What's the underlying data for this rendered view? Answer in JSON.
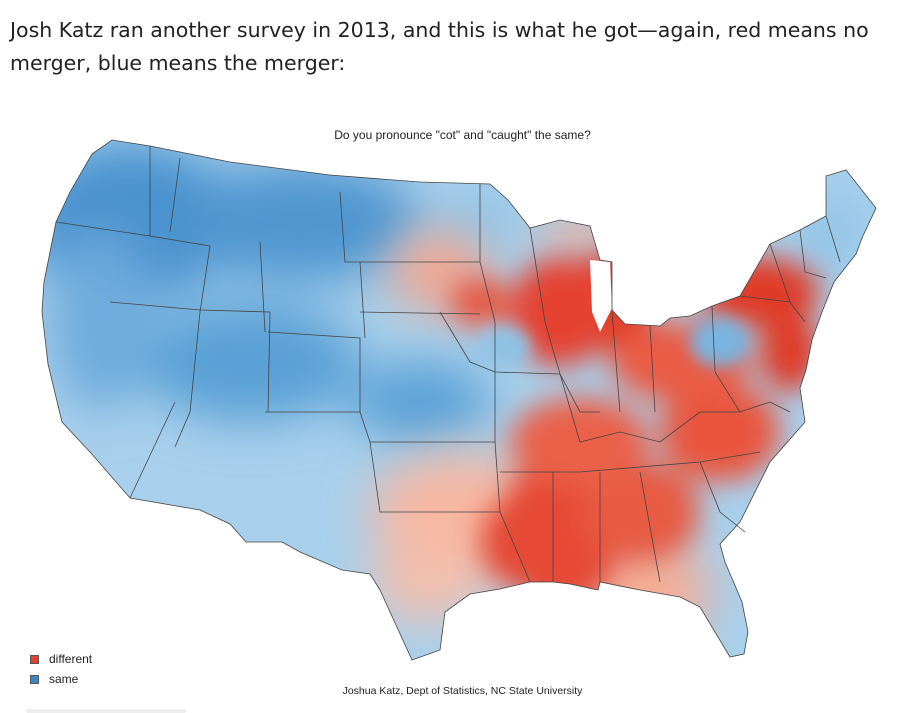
{
  "post": {
    "text": "Josh Katz ran another survey in 2013, and this is what he got—again, red means no merger, blue means the merger:"
  },
  "map": {
    "title": "Do you pronounce \"cot\" and \"caught\" the same?",
    "credit": "Joshua Katz, Dept of Statistics, NC State University",
    "legend": [
      {
        "label": "different",
        "color": "#e5412f"
      },
      {
        "label": "same",
        "color": "#3a86c8"
      }
    ],
    "colors": {
      "same_base": "#9fcbe8",
      "same_strong": "#3a86c8",
      "different_light": "#f6ae98",
      "different_strong": "#e03a28",
      "border": "#444444"
    }
  }
}
